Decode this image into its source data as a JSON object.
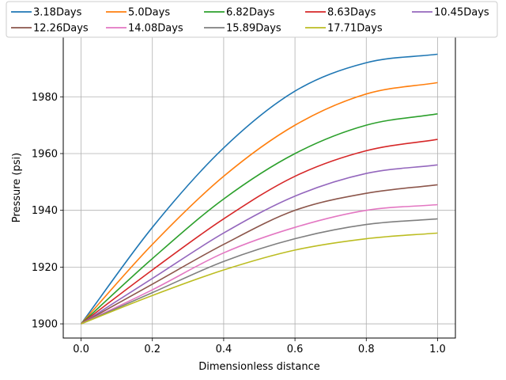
{
  "chart_data": {
    "type": "line",
    "xlabel": "Dimensionless distance",
    "ylabel": "Pressure (psi)",
    "xlim": [
      -0.05,
      1.05
    ],
    "ylim": [
      1895,
      2001
    ],
    "x_ticks": [
      0.0,
      0.2,
      0.4,
      0.6,
      0.8,
      1.0
    ],
    "x_tick_labels": [
      "0.0",
      "0.2",
      "0.4",
      "0.6",
      "0.8",
      "1.0"
    ],
    "y_ticks": [
      1900,
      1920,
      1940,
      1960,
      1980
    ],
    "y_tick_labels": [
      "1900",
      "1920",
      "1940",
      "1960",
      "1980"
    ],
    "grid": true,
    "legend_position": "top",
    "legend_columns": 5,
    "x": [
      0.0,
      0.2,
      0.4,
      0.6,
      0.8,
      1.0
    ],
    "series": [
      {
        "name": "3.18Days",
        "color": "#1f77b4",
        "values": [
          1900,
          1934,
          1962,
          1982,
          1992,
          1995
        ]
      },
      {
        "name": "5.0Days",
        "color": "#ff7f0e",
        "values": [
          1900,
          1928,
          1952,
          1970,
          1981,
          1985
        ]
      },
      {
        "name": "6.82Days",
        "color": "#2ca02c",
        "values": [
          1900,
          1923,
          1944,
          1960,
          1970,
          1974
        ]
      },
      {
        "name": "8.63Days",
        "color": "#d62728",
        "values": [
          1900,
          1919,
          1937,
          1952,
          1961,
          1965
        ]
      },
      {
        "name": "10.45Days",
        "color": "#9467bd",
        "values": [
          1900,
          1916,
          1932,
          1945,
          1953,
          1956
        ]
      },
      {
        "name": "12.26Days",
        "color": "#8c564b",
        "values": [
          1900,
          1914,
          1928,
          1940,
          1946,
          1949
        ]
      },
      {
        "name": "14.08Days",
        "color": "#e377c2",
        "values": [
          1900,
          1912,
          1925,
          1934,
          1940,
          1942
        ]
      },
      {
        "name": "15.89Days",
        "color": "#7f7f7f",
        "values": [
          1900,
          1911,
          1922,
          1930,
          1935,
          1937
        ]
      },
      {
        "name": "17.71Days",
        "color": "#bcbd22",
        "values": [
          1900,
          1910,
          1919,
          1926,
          1930,
          1932
        ]
      }
    ]
  }
}
